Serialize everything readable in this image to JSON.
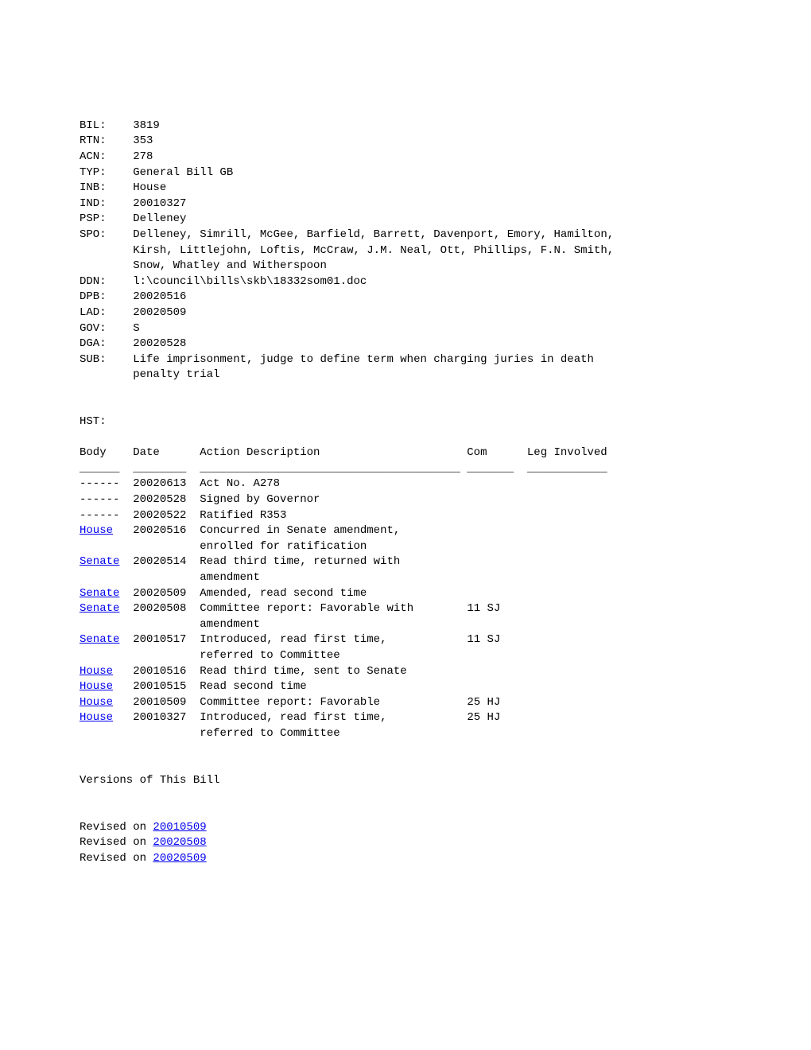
{
  "header": {
    "fields": [
      {
        "label": "BIL:",
        "value": "3819"
      },
      {
        "label": "RTN:",
        "value": "353"
      },
      {
        "label": "ACN:",
        "value": "278"
      },
      {
        "label": "TYP:",
        "value": "General Bill GB"
      },
      {
        "label": "INB:",
        "value": "House"
      },
      {
        "label": "IND:",
        "value": "20010327"
      },
      {
        "label": "PSP:",
        "value": "Delleney"
      }
    ],
    "spo_label": "SPO:",
    "spo_lines": [
      "Delleney, Simrill, McGee, Barfield, Barrett, Davenport, Emory, Hamilton,",
      "Kirsh, Littlejohn, Loftis, McCraw, J.M. Neal, Ott, Phillips, F.N. Smith,",
      "Snow, Whatley and Witherspoon"
    ],
    "fields2": [
      {
        "label": "DDN:",
        "value": "l:\\council\\bills\\skb\\18332som01.doc"
      },
      {
        "label": "DPB:",
        "value": "20020516"
      },
      {
        "label": "LAD:",
        "value": "20020509"
      },
      {
        "label": "GOV:",
        "value": "S"
      },
      {
        "label": "DGA:",
        "value": "20020528"
      }
    ],
    "sub_label": "SUB:",
    "sub_lines": [
      "Life imprisonment, judge to define term when charging juries in death",
      "penalty trial"
    ]
  },
  "hst_label": "HST:",
  "table_header": {
    "body": "Body",
    "date": "Date",
    "action": "Action Description",
    "com": "Com",
    "leg": "Leg Involved"
  },
  "rules": {
    "body": "______",
    "date": "________",
    "action": "_______________________________________",
    "com": "_______",
    "leg": "____________"
  },
  "rows": [
    {
      "body": "------",
      "link": false,
      "date": "20020613",
      "action": [
        "Act No. A278"
      ],
      "com": ""
    },
    {
      "body": "------",
      "link": false,
      "date": "20020528",
      "action": [
        "Signed by Governor"
      ],
      "com": ""
    },
    {
      "body": "------",
      "link": false,
      "date": "20020522",
      "action": [
        "Ratified R353"
      ],
      "com": ""
    },
    {
      "body": "House",
      "link": true,
      "date": "20020516",
      "action": [
        "Concurred in Senate amendment,",
        "enrolled for ratification"
      ],
      "com": ""
    },
    {
      "body": "Senate",
      "link": true,
      "date": "20020514",
      "action": [
        "Read third time, returned with",
        "amendment"
      ],
      "com": ""
    },
    {
      "body": "Senate",
      "link": true,
      "date": "20020509",
      "action": [
        "Amended, read second time"
      ],
      "com": ""
    },
    {
      "body": "Senate",
      "link": true,
      "date": "20020508",
      "action": [
        "Committee report: Favorable with",
        "amendment"
      ],
      "com": "11 SJ"
    },
    {
      "body": "Senate",
      "link": true,
      "date": "20010517",
      "action": [
        "Introduced, read first time,",
        "referred to Committee"
      ],
      "com": "11 SJ"
    },
    {
      "body": "House",
      "link": true,
      "date": "20010516",
      "action": [
        "Read third time, sent to Senate"
      ],
      "com": ""
    },
    {
      "body": "House",
      "link": true,
      "date": "20010515",
      "action": [
        "Read second time"
      ],
      "com": ""
    },
    {
      "body": "House",
      "link": true,
      "date": "20010509",
      "action": [
        "Committee report: Favorable"
      ],
      "com": "25 HJ"
    },
    {
      "body": "House",
      "link": true,
      "date": "20010327",
      "action": [
        "Introduced, read first time,",
        "referred to Committee"
      ],
      "com": "25 HJ"
    }
  ],
  "versions_label": "Versions of This Bill",
  "revisions": [
    {
      "prefix": "Revised on ",
      "date": "20010509"
    },
    {
      "prefix": "Revised on ",
      "date": "20020508"
    },
    {
      "prefix": "Revised on ",
      "date": "20020509"
    }
  ],
  "layout": {
    "label_pad": 8,
    "body_pad": 8,
    "date_pad": 10,
    "action_pad": 40,
    "continuation_indent": 18
  }
}
